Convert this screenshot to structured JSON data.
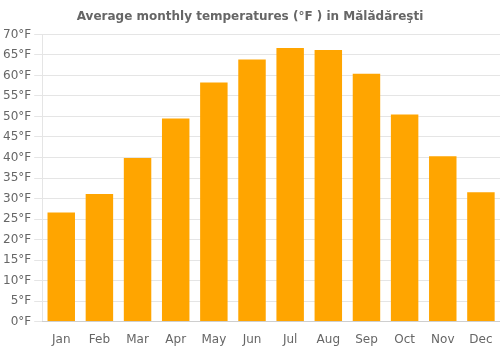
{
  "chart_data": {
    "type": "bar",
    "title": "Average monthly temperatures (°F ) in Mălădăreşti",
    "categories": [
      "Jan",
      "Feb",
      "Mar",
      "Apr",
      "May",
      "Jun",
      "Jul",
      "Aug",
      "Sep",
      "Oct",
      "Nov",
      "Dec"
    ],
    "values": [
      26.6,
      31.1,
      39.9,
      49.5,
      58.3,
      63.9,
      66.7,
      66.2,
      60.4,
      50.5,
      40.3,
      31.5
    ],
    "color": "#FFA500",
    "ylim": [
      0,
      70
    ],
    "yticks": [
      {
        "value": 0,
        "label": "0°F"
      },
      {
        "value": 5,
        "label": "5°F"
      },
      {
        "value": 10,
        "label": "10°F"
      },
      {
        "value": 15,
        "label": "15°F"
      },
      {
        "value": 20,
        "label": "20°F"
      },
      {
        "value": 25,
        "label": "25°F"
      },
      {
        "value": 30,
        "label": "30°F"
      },
      {
        "value": 35,
        "label": "35°F"
      },
      {
        "value": 40,
        "label": "40°F"
      },
      {
        "value": 45,
        "label": "45°F"
      },
      {
        "value": 50,
        "label": "50°F"
      },
      {
        "value": 55,
        "label": "55°F"
      },
      {
        "value": 60,
        "label": "60°F"
      },
      {
        "value": 65,
        "label": "65°F"
      },
      {
        "value": 70,
        "label": "70°F"
      }
    ],
    "grid": "y"
  }
}
